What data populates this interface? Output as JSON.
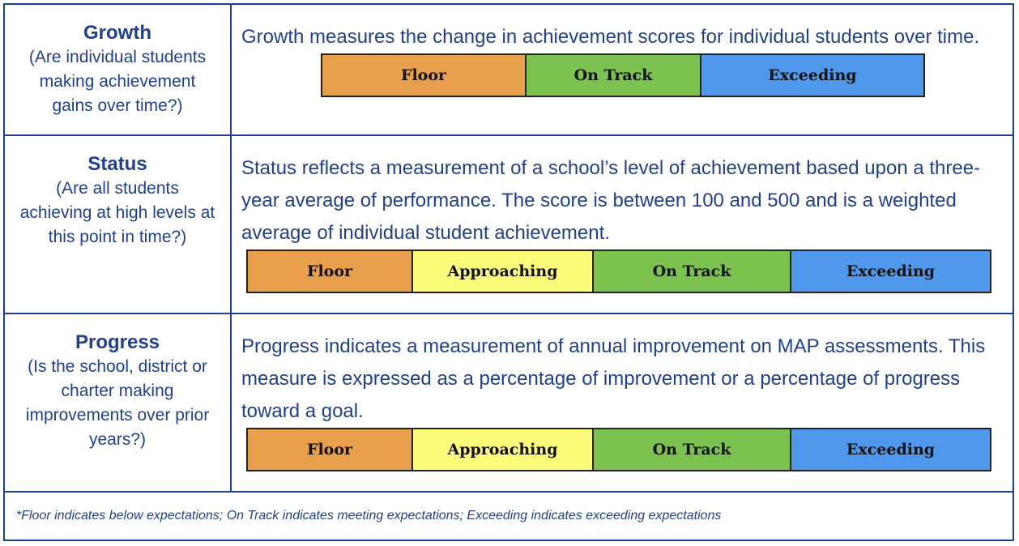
{
  "colors": {
    "text_blue": "#1f3f8f",
    "border_blue": "#1f3f8f",
    "floor": "#e8a04c",
    "approaching": "#fdfb7a",
    "on_track": "#7cc24e",
    "exceeding": "#4f98ec"
  },
  "rows": {
    "growth": {
      "title": "Growth",
      "question": "(Are individual students making achievement gains over time?)",
      "description": "Growth measures the change in achievement scores for individual students over time.",
      "levels": [
        "Floor",
        "On Track",
        "Exceeding"
      ]
    },
    "status": {
      "title": "Status",
      "question": "(Are all students achieving at high levels at this point in time?)",
      "description": "Status reflects a measurement of a school’s level of achievement based upon a three-year average of performance. The score is between 100 and 500 and is a weighted average of individual student achievement.",
      "levels": [
        "Floor",
        "Approaching",
        "On Track",
        "Exceeding"
      ]
    },
    "progress": {
      "title": "Progress",
      "question": "(Is the school, district or charter making improvements over prior years?)",
      "description": "Progress indicates a measurement of annual improvement on MAP assessments. This measure is expressed as a percentage of improvement or a percentage of progress toward a goal.",
      "levels": [
        "Floor",
        "Approaching",
        "On Track",
        "Exceeding"
      ]
    }
  },
  "footnote": "*Floor indicates below expectations; On Track indicates meeting expectations; Exceeding indicates exceeding expectations"
}
